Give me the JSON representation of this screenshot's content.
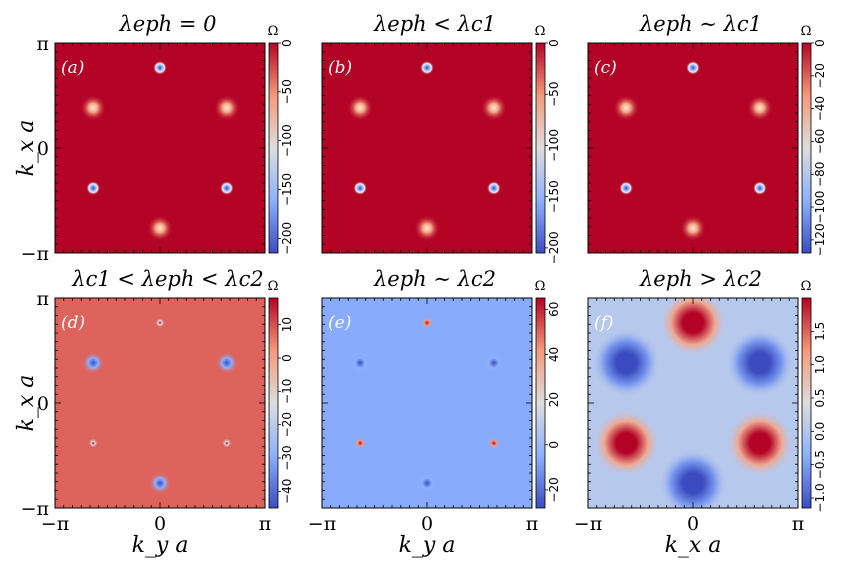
{
  "figure": {
    "x_label_left": "k_y a",
    "x_label_right": "k_x a",
    "y_label": "k_x a",
    "tick_labels": [
      "−π",
      "0",
      "π"
    ],
    "colorbar_label": "Ω",
    "colormap": [
      "#3b4cc0",
      "#8db0fe",
      "#dddddd",
      "#f49a7b",
      "#b40426"
    ]
  },
  "chart_data": [
    {
      "type": "heatmap",
      "panel": "(a)",
      "title": "λeph = 0",
      "xlabel": "",
      "ylabel": "k_x a",
      "xlim": [
        "−π",
        "π"
      ],
      "ylim": [
        "−π",
        "π"
      ],
      "background_value": 0,
      "colorbar_range": [
        -215,
        0
      ],
      "colorbar_ticks": [
        "0",
        "−50",
        "−100",
        "−150",
        "−200"
      ],
      "colorbar_values": [
        0,
        -50,
        -100,
        -150,
        -200
      ],
      "features": [
        {
          "x": 0,
          "y": 2.4,
          "kind": "dip",
          "value": -215
        },
        {
          "x": -2.0,
          "y": -1.2,
          "kind": "dip",
          "value": -215
        },
        {
          "x": 2.0,
          "y": -1.2,
          "kind": "dip",
          "value": -215
        },
        {
          "x": -2.0,
          "y": 1.2,
          "kind": "glow",
          "value": -60
        },
        {
          "x": 2.0,
          "y": 1.2,
          "kind": "glow",
          "value": -60
        },
        {
          "x": 0,
          "y": -2.4,
          "kind": "glow",
          "value": -60
        }
      ]
    },
    {
      "type": "heatmap",
      "panel": "(b)",
      "title": "λeph < λc1",
      "xlabel": "",
      "ylabel": "",
      "xlim": [
        "−π",
        "π"
      ],
      "ylim": [
        "−π",
        "π"
      ],
      "background_value": 0,
      "colorbar_range": [
        -205,
        0
      ],
      "colorbar_ticks": [
        "0",
        "−50",
        "−100",
        "−150",
        "−200"
      ],
      "colorbar_values": [
        0,
        -50,
        -100,
        -150,
        -200
      ],
      "features": [
        {
          "x": 0,
          "y": 2.4,
          "kind": "dip",
          "value": -205
        },
        {
          "x": -2.0,
          "y": -1.2,
          "kind": "dip",
          "value": -205
        },
        {
          "x": 2.0,
          "y": -1.2,
          "kind": "dip",
          "value": -205
        },
        {
          "x": -2.0,
          "y": 1.2,
          "kind": "glow",
          "value": -55
        },
        {
          "x": 2.0,
          "y": 1.2,
          "kind": "glow",
          "value": -55
        },
        {
          "x": 0,
          "y": -2.4,
          "kind": "glow",
          "value": -55
        }
      ]
    },
    {
      "type": "heatmap",
      "panel": "(c)",
      "title": "λeph ∼ λc1",
      "xlabel": "",
      "ylabel": "",
      "xlim": [
        "−π",
        "π"
      ],
      "ylim": [
        "−π",
        "π"
      ],
      "background_value": 0,
      "colorbar_range": [
        -128,
        0
      ],
      "colorbar_ticks": [
        "0",
        "−20",
        "−40",
        "−60",
        "−80",
        "−100",
        "−120"
      ],
      "colorbar_values": [
        0,
        -20,
        -40,
        -60,
        -80,
        -100,
        -120
      ],
      "features": [
        {
          "x": 0,
          "y": 2.4,
          "kind": "dip",
          "value": -128
        },
        {
          "x": -2.0,
          "y": -1.2,
          "kind": "dip",
          "value": -128
        },
        {
          "x": 2.0,
          "y": -1.2,
          "kind": "dip",
          "value": -128
        },
        {
          "x": -2.0,
          "y": 1.2,
          "kind": "glow",
          "value": -40
        },
        {
          "x": 2.0,
          "y": 1.2,
          "kind": "glow",
          "value": -40
        },
        {
          "x": 0,
          "y": -2.4,
          "kind": "glow",
          "value": -40
        }
      ]
    },
    {
      "type": "heatmap",
      "panel": "(d)",
      "title": "λc1 < λeph < λc2",
      "xlabel": "k_y a",
      "ylabel": "k_x a",
      "xlim": [
        "−π",
        "π"
      ],
      "ylim": [
        "−π",
        "π"
      ],
      "background_value": 8,
      "colorbar_range": [
        -45,
        18
      ],
      "colorbar_ticks": [
        "10",
        "0",
        "−10",
        "−20",
        "−30",
        "−40"
      ],
      "colorbar_values": [
        10,
        0,
        -10,
        -20,
        -30,
        -40
      ],
      "features": [
        {
          "x": -2.0,
          "y": 1.2,
          "kind": "blob",
          "value": -45
        },
        {
          "x": 2.0,
          "y": 1.2,
          "kind": "blob",
          "value": -45
        },
        {
          "x": 0,
          "y": -2.4,
          "kind": "blob",
          "value": -45
        },
        {
          "x": 0,
          "y": 2.4,
          "kind": "tiny",
          "value": -20
        },
        {
          "x": -2.0,
          "y": -1.2,
          "kind": "tiny",
          "value": -20
        },
        {
          "x": 2.0,
          "y": -1.2,
          "kind": "tiny",
          "value": -20
        }
      ]
    },
    {
      "type": "heatmap",
      "panel": "(e)",
      "title": "λeph ∼ λc2",
      "xlabel": "k_y a",
      "ylabel": "",
      "xlim": [
        "−π",
        "π"
      ],
      "ylim": [
        "−π",
        "π"
      ],
      "background_value": -6,
      "colorbar_range": [
        -28,
        65
      ],
      "colorbar_ticks": [
        "60",
        "40",
        "20",
        "0",
        "−20"
      ],
      "colorbar_values": [
        60,
        40,
        20,
        0,
        -20
      ],
      "features": [
        {
          "x": -2.0,
          "y": 1.2,
          "kind": "blob",
          "value": -28
        },
        {
          "x": 2.0,
          "y": 1.2,
          "kind": "blob",
          "value": -28
        },
        {
          "x": 0,
          "y": -2.4,
          "kind": "blob",
          "value": -28
        },
        {
          "x": 0,
          "y": 2.4,
          "kind": "spot",
          "value": 65
        },
        {
          "x": -2.0,
          "y": -1.2,
          "kind": "spot",
          "value": 65
        },
        {
          "x": 2.0,
          "y": -1.2,
          "kind": "spot",
          "value": 65
        }
      ]
    },
    {
      "type": "heatmap",
      "panel": "(f)",
      "title": "λeph > λc2",
      "xlabel": "k_x a",
      "ylabel": "",
      "xlim": [
        "−π",
        "π"
      ],
      "ylim": [
        "−π",
        "π"
      ],
      "background_value": 0.05,
      "colorbar_range": [
        -1.15,
        2.0
      ],
      "colorbar_ticks": [
        "1.5",
        "1.0",
        "0.5",
        "0.0",
        "−0.5",
        "−1.0"
      ],
      "colorbar_values": [
        1.5,
        1.0,
        0.5,
        0.0,
        -0.5,
        -1.0
      ],
      "features": [
        {
          "x": -2.0,
          "y": 1.2,
          "kind": "broad",
          "value": -1.15
        },
        {
          "x": 2.0,
          "y": 1.2,
          "kind": "broad",
          "value": -1.15
        },
        {
          "x": 0,
          "y": -2.4,
          "kind": "broad",
          "value": -1.15
        },
        {
          "x": 0,
          "y": 2.4,
          "kind": "broad",
          "value": 2.0
        },
        {
          "x": -2.0,
          "y": -1.2,
          "kind": "broad",
          "value": 2.0
        },
        {
          "x": 2.0,
          "y": -1.2,
          "kind": "broad",
          "value": 2.0
        }
      ]
    }
  ]
}
